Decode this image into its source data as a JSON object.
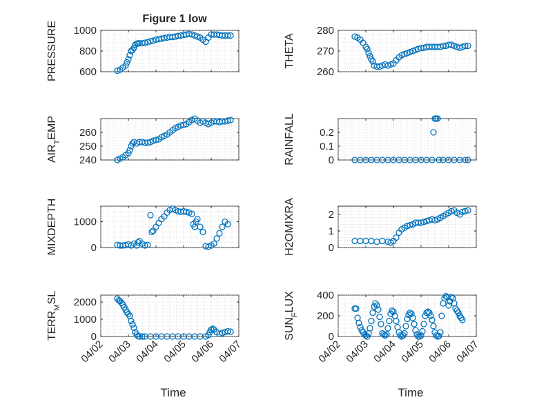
{
  "figure": {
    "title": "Figure 1 low",
    "xlabel": "Time",
    "xtick_labels": [
      "04/02",
      "04/03",
      "04/04",
      "04/05",
      "04/06",
      "04/07"
    ]
  },
  "colors": {
    "marker": "#0072bd",
    "axes": "#262626",
    "grid": "#c9c9c9"
  },
  "chart_data": [
    {
      "type": "scatter",
      "ylabel": "PRESSURE",
      "title": "Figure 1 low",
      "ylim": [
        600,
        1000
      ],
      "yticks": [
        600,
        800,
        1000
      ],
      "grid": true,
      "xlim": [
        0,
        5
      ],
      "xlabel": "",
      "series": [
        {
          "x": [
            0.6,
            0.7,
            0.8,
            0.9,
            0.95,
            1.0,
            1.05,
            1.1,
            1.15,
            1.2,
            1.25,
            1.3,
            1.35,
            1.4,
            1.5,
            1.6,
            1.7,
            1.8,
            1.9,
            2.0,
            2.1,
            2.2,
            2.3,
            2.4,
            2.5,
            2.6,
            2.7,
            2.8,
            2.9,
            3.0,
            3.1,
            3.2,
            3.3,
            3.4,
            3.5,
            3.6,
            3.7,
            3.8,
            3.9,
            4.0,
            4.1,
            4.2,
            4.3,
            4.4,
            4.5,
            4.6,
            4.7
          ],
          "y": [
            610,
            620,
            640,
            660,
            690,
            720,
            760,
            800,
            810,
            830,
            860,
            870,
            875,
            875,
            875,
            880,
            885,
            895,
            900,
            910,
            915,
            920,
            925,
            930,
            935,
            935,
            940,
            945,
            950,
            955,
            960,
            965,
            960,
            950,
            940,
            930,
            910,
            890,
            930,
            960,
            960,
            960,
            955,
            950,
            950,
            950,
            950
          ]
        }
      ]
    },
    {
      "type": "scatter",
      "ylabel": "THETA",
      "ylim": [
        260,
        280
      ],
      "yticks": [
        260,
        270,
        280
      ],
      "grid": true,
      "xlim": [
        0,
        5
      ],
      "xlabel": "",
      "series": [
        {
          "x": [
            0.6,
            0.7,
            0.8,
            0.9,
            1.0,
            1.05,
            1.1,
            1.15,
            1.2,
            1.25,
            1.3,
            1.4,
            1.5,
            1.6,
            1.7,
            1.8,
            1.9,
            2.0,
            2.1,
            2.2,
            2.3,
            2.4,
            2.5,
            2.6,
            2.7,
            2.8,
            2.9,
            3.0,
            3.1,
            3.2,
            3.3,
            3.4,
            3.5,
            3.6,
            3.7,
            3.8,
            3.9,
            4.0,
            4.1,
            4.2,
            4.3,
            4.4,
            4.5,
            4.6,
            4.7
          ],
          "y": [
            277,
            276.5,
            275.5,
            274,
            272,
            271,
            269,
            267.5,
            266,
            265,
            263,
            262.5,
            262.5,
            263,
            263.5,
            263,
            263.5,
            264,
            265.5,
            267,
            268,
            268.5,
            269,
            269.5,
            270,
            270.5,
            271,
            271.5,
            271.5,
            272,
            272,
            272,
            272,
            272,
            272,
            272.5,
            272.5,
            273,
            273,
            272.5,
            272,
            271.5,
            272,
            272.5,
            272.5
          ]
        }
      ]
    },
    {
      "type": "scatter",
      "ylabel": "AIR_TEMP",
      "ylim": [
        240,
        270
      ],
      "yticks": [
        240,
        250,
        260
      ],
      "grid": true,
      "xlim": [
        0,
        5
      ],
      "xlabel": "",
      "series": [
        {
          "x": [
            0.6,
            0.7,
            0.8,
            0.9,
            1.0,
            1.05,
            1.1,
            1.15,
            1.2,
            1.3,
            1.4,
            1.5,
            1.6,
            1.7,
            1.8,
            1.9,
            2.0,
            2.1,
            2.2,
            2.3,
            2.4,
            2.5,
            2.6,
            2.7,
            2.8,
            2.9,
            3.0,
            3.1,
            3.2,
            3.3,
            3.4,
            3.5,
            3.6,
            3.7,
            3.8,
            3.9,
            4.0,
            4.1,
            4.2,
            4.3,
            4.4,
            4.5,
            4.6,
            4.7
          ],
          "y": [
            240,
            241,
            242,
            243.5,
            245,
            247,
            250,
            252,
            253,
            252,
            253,
            253,
            252.5,
            252.5,
            253,
            254,
            254.5,
            255,
            256.5,
            257.5,
            258.5,
            260,
            261.5,
            263,
            264,
            265,
            265.5,
            266,
            267.5,
            269,
            270,
            268.5,
            267,
            268,
            267,
            266,
            267,
            268,
            268,
            267.5,
            268,
            268,
            268.5,
            269
          ]
        }
      ]
    },
    {
      "type": "scatter",
      "ylabel": "RAINFALL",
      "ylim": [
        0,
        0.3
      ],
      "yticks": [
        0,
        0.1,
        0.2
      ],
      "grid": true,
      "xlim": [
        0,
        5
      ],
      "xlabel": "",
      "series": [
        {
          "x": [
            0.6,
            0.8,
            1.0,
            1.2,
            1.4,
            1.6,
            1.8,
            2.0,
            2.2,
            2.4,
            2.6,
            2.8,
            3.0,
            3.2,
            3.4,
            3.45,
            3.5,
            3.55,
            3.6,
            3.65,
            3.8,
            4.0,
            4.2,
            4.4,
            4.6,
            4.7
          ],
          "y": [
            0,
            0,
            0,
            0,
            0,
            0,
            0,
            0,
            0,
            0,
            0,
            0,
            0,
            0,
            0,
            0.2,
            0.3,
            0.3,
            0.3,
            0,
            0,
            0,
            0,
            0,
            0,
            0
          ]
        }
      ]
    },
    {
      "type": "scatter",
      "ylabel": "MIXDEPTH",
      "ylim": [
        0,
        1600
      ],
      "yticks": [
        0,
        1000
      ],
      "grid": true,
      "xlim": [
        0,
        5
      ],
      "xlabel": "",
      "series": [
        {
          "x": [
            0.6,
            0.7,
            0.8,
            0.9,
            1.0,
            1.1,
            1.2,
            1.3,
            1.35,
            1.4,
            1.5,
            1.6,
            1.7,
            1.8,
            1.85,
            1.9,
            2.0,
            2.1,
            2.2,
            2.3,
            2.4,
            2.5,
            2.6,
            2.7,
            2.8,
            2.9,
            3.0,
            3.1,
            3.2,
            3.3,
            3.35,
            3.4,
            3.45,
            3.5,
            3.6,
            3.7,
            3.8,
            3.9,
            4.0,
            4.1,
            4.2,
            4.3,
            4.4,
            4.5,
            4.6
          ],
          "y": [
            100,
            80,
            80,
            90,
            120,
            80,
            150,
            80,
            200,
            250,
            150,
            80,
            100,
            1250,
            600,
            650,
            800,
            950,
            1100,
            1200,
            1350,
            1450,
            1500,
            1450,
            1400,
            1380,
            1400,
            1380,
            1350,
            1300,
            900,
            800,
            1000,
            1100,
            800,
            600,
            50,
            30,
            80,
            150,
            350,
            550,
            800,
            1000,
            900
          ]
        }
      ]
    },
    {
      "type": "scatter",
      "ylabel": "H2OMIXRA",
      "ylim": [
        0,
        2.5
      ],
      "yticks": [
        0,
        1,
        2
      ],
      "grid": true,
      "xlim": [
        0,
        5
      ],
      "xlabel": "",
      "series": [
        {
          "x": [
            0.6,
            0.8,
            1.0,
            1.2,
            1.4,
            1.6,
            1.8,
            1.9,
            2.0,
            2.1,
            2.2,
            2.3,
            2.4,
            2.5,
            2.6,
            2.7,
            2.8,
            2.9,
            3.0,
            3.1,
            3.2,
            3.3,
            3.4,
            3.5,
            3.6,
            3.7,
            3.8,
            3.9,
            4.0,
            4.1,
            4.2,
            4.3,
            4.4,
            4.5,
            4.6,
            4.7
          ],
          "y": [
            0.4,
            0.4,
            0.4,
            0.4,
            0.35,
            0.4,
            0.35,
            0.3,
            0.4,
            0.6,
            0.9,
            1.1,
            1.2,
            1.3,
            1.35,
            1.4,
            1.5,
            1.5,
            1.5,
            1.55,
            1.6,
            1.65,
            1.7,
            1.65,
            1.7,
            1.8,
            1.9,
            2.0,
            2.1,
            2.2,
            2.25,
            2.1,
            2.0,
            2.15,
            2.2,
            2.25
          ]
        }
      ]
    },
    {
      "type": "scatter",
      "ylabel": "TERR_MSL",
      "ylim": [
        0,
        2400
      ],
      "yticks": [
        0,
        1000,
        2000
      ],
      "grid": true,
      "xlim": [
        0,
        5
      ],
      "xlabel": "",
      "series": [
        {
          "x": [
            0.6,
            0.65,
            0.7,
            0.75,
            0.8,
            0.85,
            0.9,
            0.95,
            1.0,
            1.05,
            1.1,
            1.15,
            1.2,
            1.25,
            1.3,
            1.35,
            1.4,
            1.5,
            1.6,
            1.8,
            2.0,
            2.2,
            2.4,
            2.6,
            2.8,
            3.0,
            3.2,
            3.4,
            3.6,
            3.8,
            3.9,
            3.95,
            4.0,
            4.05,
            4.1,
            4.2,
            4.3,
            4.4,
            4.5,
            4.6,
            4.7
          ],
          "y": [
            2200,
            2100,
            2050,
            1950,
            1850,
            1700,
            1550,
            1400,
            1300,
            1200,
            900,
            700,
            500,
            250,
            120,
            20,
            0,
            0,
            0,
            0,
            0,
            0,
            0,
            0,
            0,
            0,
            0,
            0,
            0,
            0,
            80,
            250,
            400,
            450,
            400,
            250,
            150,
            200,
            250,
            300,
            280
          ]
        }
      ]
    },
    {
      "type": "scatter",
      "ylabel": "SUN_FLUX",
      "ylim": [
        0,
        400
      ],
      "yticks": [
        0,
        200,
        400
      ],
      "grid": true,
      "xlim": [
        0,
        5
      ],
      "xlabel": "",
      "series": [
        {
          "x": [
            0.6,
            0.65,
            0.7,
            0.75,
            0.8,
            0.85,
            0.9,
            0.95,
            1.0,
            1.05,
            1.1,
            1.15,
            1.2,
            1.25,
            1.3,
            1.35,
            1.4,
            1.45,
            1.5,
            1.55,
            1.6,
            1.65,
            1.7,
            1.75,
            1.8,
            1.85,
            1.9,
            1.95,
            2.0,
            2.05,
            2.1,
            2.15,
            2.2,
            2.25,
            2.3,
            2.35,
            2.4,
            2.45,
            2.5,
            2.55,
            2.6,
            2.65,
            2.7,
            2.75,
            2.8,
            2.85,
            2.9,
            2.95,
            3.0,
            3.05,
            3.1,
            3.15,
            3.2,
            3.25,
            3.3,
            3.35,
            3.4,
            3.45,
            3.5,
            3.55,
            3.6,
            3.65,
            3.7,
            3.75,
            3.8,
            3.85,
            3.9,
            3.95,
            4.0,
            4.05,
            4.1,
            4.15,
            4.2,
            4.25,
            4.3,
            4.35,
            4.4,
            4.45,
            4.5
          ],
          "y": [
            270,
            270,
            180,
            130,
            90,
            60,
            40,
            20,
            10,
            0,
            30,
            80,
            150,
            230,
            290,
            320,
            300,
            260,
            190,
            120,
            30,
            20,
            10,
            20,
            80,
            150,
            220,
            250,
            240,
            200,
            150,
            90,
            40,
            10,
            0,
            10,
            30,
            100,
            170,
            210,
            230,
            220,
            180,
            120,
            60,
            20,
            0,
            0,
            10,
            50,
            120,
            200,
            230,
            240,
            230,
            200,
            160,
            100,
            40,
            10,
            0,
            5,
            40,
            200,
            320,
            370,
            390,
            380,
            300,
            340,
            380,
            370,
            320,
            270,
            250,
            230,
            200,
            180,
            160
          ]
        }
      ]
    }
  ]
}
